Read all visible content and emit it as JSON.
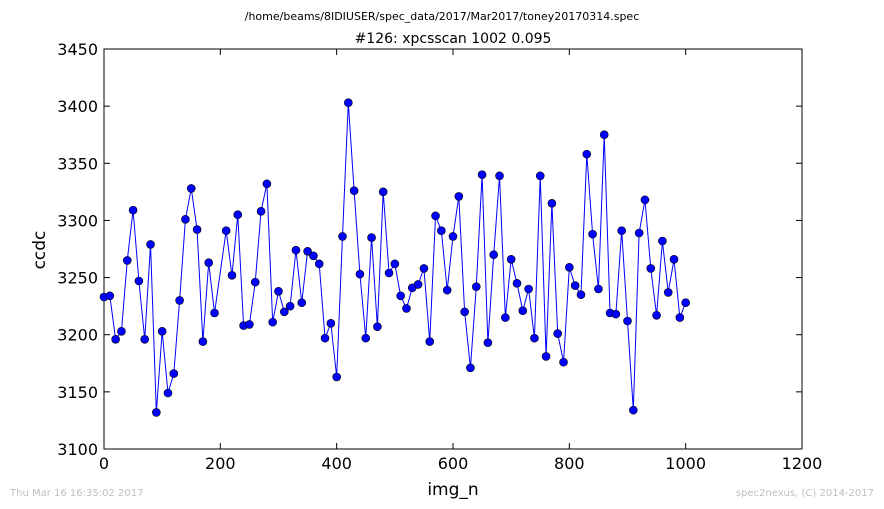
{
  "chart_data": {
    "type": "line",
    "subtitle": "/home/beams/8IDIUSER/spec_data/2017/Mar2017/toney20170314.spec",
    "title": "#126: xpcsscan 1002 0.095",
    "xlabel": "img_n",
    "ylabel": "ccdc",
    "xlim": [
      0,
      1200
    ],
    "ylim": [
      3100,
      3450
    ],
    "xticks": [
      0,
      200,
      400,
      600,
      800,
      1000,
      1200
    ],
    "yticks": [
      3100,
      3150,
      3200,
      3250,
      3300,
      3350,
      3400,
      3450
    ],
    "grid": false,
    "legend": "none",
    "line_color": "#0000ff",
    "marker_color": "#0000ff",
    "series": [
      {
        "x": [
          0,
          10,
          20,
          30,
          40,
          50,
          60,
          70,
          80,
          90,
          100,
          110,
          120,
          130,
          140,
          150,
          160,
          170,
          180,
          190,
          210,
          220,
          230,
          240,
          250,
          260,
          270,
          280,
          290,
          300,
          310,
          320,
          330,
          340,
          350,
          360,
          370,
          380,
          390,
          400,
          410,
          420,
          430,
          440,
          450,
          460,
          470,
          480,
          490,
          500,
          510,
          520,
          530,
          540,
          550,
          560,
          570,
          580,
          590,
          600,
          610,
          620,
          630,
          640,
          650,
          660,
          670,
          680,
          690,
          700,
          710,
          720,
          730,
          740,
          750,
          760,
          770,
          780,
          790,
          800,
          810,
          820,
          830,
          840,
          850,
          860,
          870,
          880,
          890,
          900,
          910,
          920,
          930,
          940,
          950,
          960,
          970,
          980,
          990,
          1000
        ],
        "values": [
          3233,
          3234,
          3196,
          3203,
          3265,
          3309,
          3247,
          3196,
          3279,
          3132,
          3203,
          3149,
          3166,
          3230,
          3301,
          3328,
          3292,
          3194,
          3263,
          3219,
          3291,
          3252,
          3305,
          3208,
          3209,
          3246,
          3308,
          3332,
          3211,
          3238,
          3220,
          3225,
          3274,
          3228,
          3273,
          3269,
          3262,
          3197,
          3210,
          3163,
          3286,
          3403,
          3326,
          3253,
          3197,
          3285,
          3207,
          3325,
          3254,
          3262,
          3234,
          3223,
          3241,
          3244,
          3258,
          3194,
          3304,
          3291,
          3239,
          3286,
          3321,
          3220,
          3171,
          3242,
          3340,
          3193,
          3270,
          3339,
          3215,
          3266,
          3245,
          3221,
          3240,
          3197,
          3339,
          3181,
          3315,
          3201,
          3176,
          3259,
          3243,
          3235,
          3358,
          3288,
          3240,
          3375,
          3219,
          3218,
          3291,
          3212,
          3134,
          3289,
          3318,
          3258,
          3217,
          3282,
          3237,
          3266,
          3215,
          3228
        ]
      }
    ]
  },
  "footer": {
    "timestamp": "Thu Mar 16 16:35:02 2017",
    "credit": "spec2nexus, (C) 2014-2017"
  }
}
